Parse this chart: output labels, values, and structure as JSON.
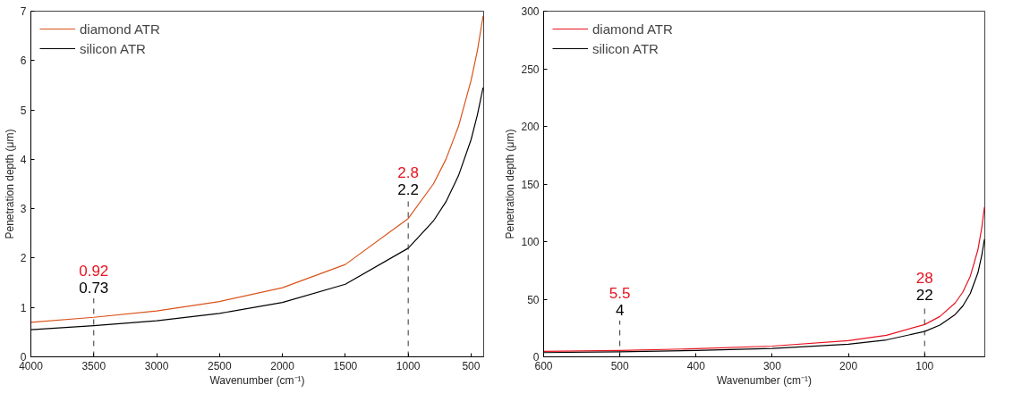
{
  "chart_data": [
    {
      "type": "line",
      "xlabel": "Wavenumber (cm⁻¹)",
      "ylabel": "Penetration depth (μm)",
      "x": [
        4000,
        3500,
        3000,
        2500,
        2000,
        1500,
        1000,
        800,
        700,
        600,
        500,
        450,
        405
      ],
      "series": [
        {
          "name": "diamond ATR",
          "color": "#d95319",
          "values": [
            0.7,
            0.8,
            0.93,
            1.12,
            1.4,
            1.87,
            2.8,
            3.5,
            4.0,
            4.67,
            5.6,
            6.2,
            6.9
          ]
        },
        {
          "name": "silicon ATR",
          "color": "#000000",
          "values": [
            0.55,
            0.63,
            0.73,
            0.88,
            1.1,
            1.47,
            2.2,
            2.75,
            3.14,
            3.67,
            4.4,
            4.9,
            5.45
          ]
        }
      ],
      "xlim": [
        4000,
        400
      ],
      "ylim": [
        0,
        7
      ],
      "xticks": [
        4000,
        3500,
        3000,
        2500,
        2000,
        1500,
        1000,
        500
      ],
      "yticks": [
        0,
        1,
        2,
        3,
        4,
        5,
        6,
        7
      ],
      "ref_lines": [
        {
          "axis": "x",
          "value": 3500,
          "color": "#333333",
          "line_style": "dashed"
        },
        {
          "axis": "x",
          "value": 1000,
          "color": "#333333",
          "line_style": "dashed"
        }
      ],
      "annotations": [
        "0.92",
        "0.73",
        "2.8",
        "2.2"
      ],
      "legend": "top left",
      "grid": false,
      "line_style": "solid",
      "marker": "none"
    },
    {
      "type": "line",
      "xlabel": "Wavenumber (cm⁻¹)",
      "ylabel": "Penetration depth (μm)",
      "x": [
        600,
        500,
        400,
        300,
        200,
        150,
        100,
        80,
        60,
        50,
        40,
        30,
        25,
        21.5
      ],
      "series": [
        {
          "name": "diamond ATR",
          "color": "#e8121f",
          "values": [
            4.7,
            5.6,
            7.0,
            9.3,
            14,
            18.7,
            28,
            35,
            46.7,
            56,
            70,
            93,
            112,
            130
          ]
        },
        {
          "name": "silicon ATR",
          "color": "#000000",
          "values": [
            3.7,
            4.4,
            5.5,
            7.3,
            11,
            14.7,
            22,
            27.5,
            36.7,
            44,
            55,
            73,
            88,
            102
          ]
        }
      ],
      "xlim": [
        600,
        21
      ],
      "ylim": [
        0,
        300
      ],
      "xticks": [
        600,
        500,
        400,
        300,
        200,
        100
      ],
      "yticks": [
        0,
        50,
        100,
        150,
        200,
        250,
        300
      ],
      "ref_lines": [
        {
          "axis": "x",
          "value": 500,
          "color": "#333333",
          "line_style": "dashed"
        },
        {
          "axis": "x",
          "value": 100,
          "color": "#333333",
          "line_style": "dashed"
        }
      ],
      "annotations": [
        "5.5",
        "4",
        "28",
        "22"
      ],
      "legend": "top left",
      "grid": false,
      "line_style": "solid",
      "marker": "none"
    }
  ]
}
